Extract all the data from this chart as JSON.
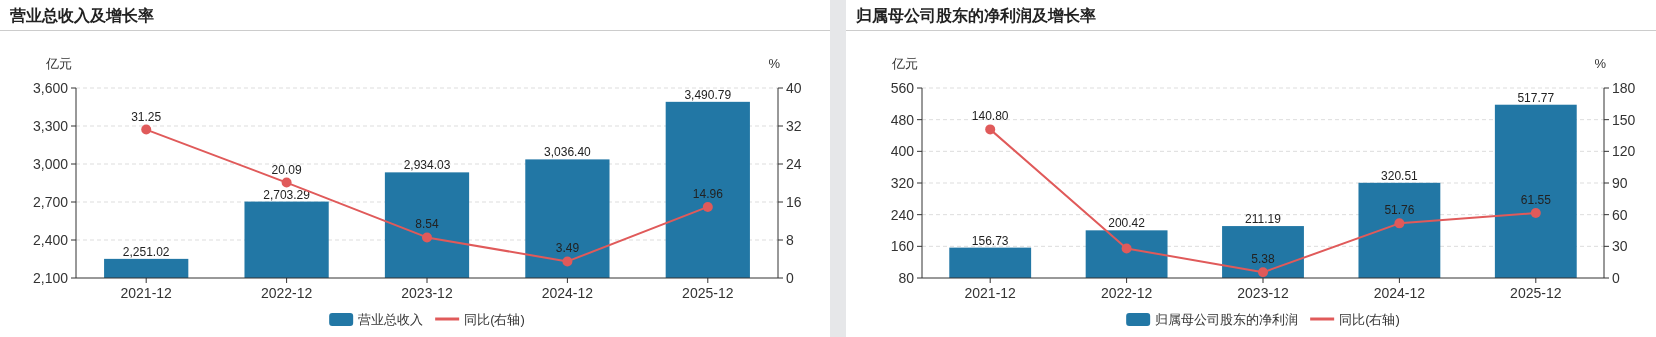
{
  "chart_data": [
    {
      "type": "bar",
      "title": "营业总收入及增长率",
      "ylabel": "亿元",
      "y2label": "%",
      "categories": [
        "2021-12",
        "2022-12",
        "2023-12",
        "2024-12",
        "2025-12"
      ],
      "series": [
        {
          "name": "营业总收入",
          "color": "#2277a5",
          "values": [
            2251.02,
            2703.29,
            2934.03,
            3036.4,
            3490.79
          ],
          "value_labels": [
            "2,251.02",
            "2,703.29",
            "2,934.03",
            "3,036.40",
            "3,490.79"
          ]
        },
        {
          "name": "同比(右轴)",
          "type": "line",
          "axis": "y2",
          "color": "#e05a5a",
          "marker": "circle",
          "values": [
            31.25,
            20.09,
            8.54,
            3.49,
            14.96
          ],
          "value_labels": [
            "31.25",
            "20.09",
            "8.54",
            "3.49",
            "14.96"
          ]
        }
      ],
      "ylim": [
        2100,
        3600
      ],
      "yticks": [
        {
          "value": 2100,
          "label": "2,100"
        },
        {
          "value": 2400,
          "label": "2,400"
        },
        {
          "value": 2700,
          "label": "2,700"
        },
        {
          "value": 3000,
          "label": "3,000"
        },
        {
          "value": 3300,
          "label": "3,300"
        },
        {
          "value": 3600,
          "label": "3,600"
        }
      ],
      "y2lim": [
        0,
        40
      ],
      "y2ticks": [
        0,
        8,
        16,
        24,
        32,
        40
      ],
      "grid": "y",
      "legend": "bottom"
    },
    {
      "type": "bar",
      "title": "归属母公司股东的净利润及增长率",
      "ylabel": "亿元",
      "y2label": "%",
      "categories": [
        "2021-12",
        "2022-12",
        "2023-12",
        "2024-12",
        "2025-12"
      ],
      "series": [
        {
          "name": "归属母公司股东的净利润",
          "color": "#2277a5",
          "values": [
            156.73,
            200.42,
            211.19,
            320.51,
            517.77
          ],
          "value_labels": [
            "156.73",
            "200.42",
            "211.19",
            "320.51",
            "517.77"
          ]
        },
        {
          "name": "同比(右轴)",
          "type": "line",
          "axis": "y2",
          "color": "#e05a5a",
          "marker": "circle",
          "values": [
            140.8,
            28,
            5.38,
            51.76,
            61.55
          ],
          "value_labels": [
            "140.80",
            null,
            "5.38",
            "51.76",
            "61.55"
          ]
        }
      ],
      "ylim": [
        80,
        560
      ],
      "yticks": [
        80,
        160,
        240,
        320,
        400,
        480,
        560
      ],
      "y2lim": [
        0,
        180
      ],
      "y2ticks": [
        0,
        30,
        60,
        90,
        120,
        150,
        180
      ],
      "grid": "y",
      "legend": "bottom"
    }
  ]
}
